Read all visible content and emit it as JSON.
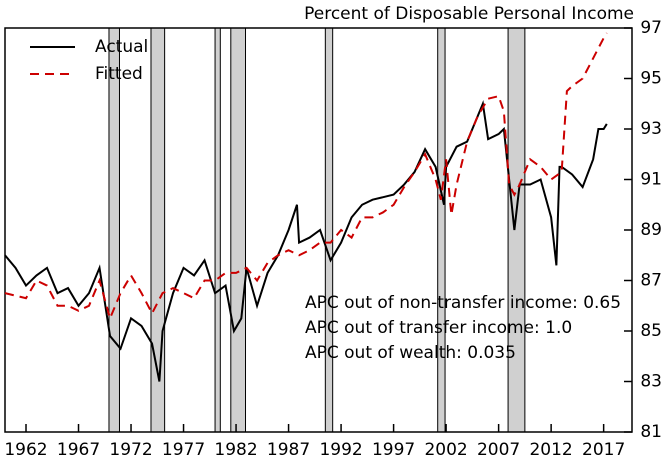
{
  "chart_data": {
    "type": "line",
    "subtitle": "Percent of Disposable Personal Income",
    "annotations": [
      "APC out of non-transfer income: 0.65",
      "APC out of transfer income: 1.0",
      "APC out of wealth: 0.035"
    ],
    "xlim": [
      1960,
      2019.7
    ],
    "xticks": [
      1962,
      1967,
      1972,
      1977,
      1982,
      1987,
      1992,
      1997,
      2002,
      2007,
      2012,
      2017
    ],
    "ylim": [
      81,
      97
    ],
    "yticks": [
      81,
      83,
      85,
      87,
      89,
      91,
      93,
      95,
      97
    ],
    "shaded_ranges": [
      [
        1969.9,
        1970.9
      ],
      [
        1973.9,
        1975.2
      ],
      [
        1980.0,
        1980.5
      ],
      [
        1981.5,
        1982.9
      ],
      [
        1990.5,
        1991.2
      ],
      [
        2001.2,
        2001.9
      ],
      [
        2007.9,
        2009.5
      ]
    ],
    "shade_color": "#d0d0d0",
    "series": [
      {
        "name": "Actual",
        "color": "#000000",
        "dash": false,
        "x": [
          1960,
          1961,
          1962,
          1963,
          1964,
          1965,
          1966,
          1967,
          1968,
          1969,
          1970,
          1971,
          1972,
          1973,
          1974,
          1974.7,
          1975,
          1976,
          1977,
          1978,
          1979,
          1980,
          1981,
          1981.8,
          1982.5,
          1983,
          1984,
          1985,
          1986,
          1987,
          1987.8,
          1988,
          1989,
          1990,
          1991,
          1992,
          1993,
          1994,
          1995,
          1996,
          1997,
          1998,
          1999,
          2000,
          2001,
          2001.8,
          2002,
          2003,
          2004,
          2005,
          2005.5,
          2006,
          2007,
          2007.5,
          2008,
          2008.5,
          2009,
          2010,
          2011,
          2012,
          2012.5,
          2012.8,
          2013,
          2014,
          2015,
          2016,
          2016.5,
          2017,
          2017.3
        ],
        "values": [
          88.0,
          87.5,
          86.8,
          87.2,
          87.5,
          86.5,
          86.7,
          86.0,
          86.5,
          87.5,
          84.8,
          84.3,
          85.5,
          85.2,
          84.5,
          83.0,
          85.0,
          86.5,
          87.5,
          87.2,
          87.8,
          86.5,
          86.8,
          85.0,
          85.5,
          87.5,
          86.0,
          87.3,
          88.0,
          89.0,
          90.0,
          88.5,
          88.7,
          89.0,
          87.8,
          88.5,
          89.5,
          90.0,
          90.2,
          90.3,
          90.4,
          90.8,
          91.3,
          92.2,
          91.5,
          90.0,
          91.5,
          92.3,
          92.5,
          93.5,
          94.0,
          92.6,
          92.8,
          93.0,
          91.0,
          89.0,
          90.8,
          90.8,
          91.0,
          89.5,
          87.6,
          91.5,
          91.5,
          91.2,
          90.7,
          91.8,
          93.0,
          93.0,
          93.2
        ]
      },
      {
        "name": "Fitted",
        "color": "#cc0000",
        "dash": true,
        "x": [
          1960,
          1962,
          1963,
          1964,
          1965,
          1966,
          1967,
          1968,
          1969,
          1970,
          1971,
          1972,
          1973,
          1974,
          1975,
          1976,
          1977,
          1978,
          1979,
          1980,
          1981,
          1982,
          1983,
          1984,
          1985,
          1986,
          1987,
          1988,
          1989,
          1990,
          1991,
          1992,
          1993,
          1994,
          1995,
          1996,
          1997,
          1998,
          1999,
          2000,
          2001,
          2001.5,
          2002,
          2002.5,
          2003,
          2004,
          2005,
          2006,
          2007,
          2007.5,
          2008,
          2008.5,
          2009,
          2010,
          2011,
          2012,
          2013,
          2013.5,
          2014,
          2015,
          2016,
          2017,
          2017.3
        ],
        "values": [
          86.5,
          86.3,
          87.0,
          86.8,
          86.0,
          86.0,
          85.8,
          86.0,
          87.0,
          85.5,
          86.5,
          87.2,
          86.5,
          85.7,
          86.5,
          86.7,
          86.5,
          86.3,
          87.0,
          87.0,
          87.3,
          87.3,
          87.5,
          87.0,
          87.7,
          88.0,
          88.2,
          88.0,
          88.2,
          88.5,
          88.5,
          89.0,
          88.7,
          89.5,
          89.5,
          89.7,
          90.0,
          90.7,
          91.3,
          92.0,
          91.0,
          90.2,
          91.8,
          89.6,
          90.8,
          92.5,
          93.5,
          94.2,
          94.3,
          93.7,
          90.8,
          90.4,
          90.8,
          91.8,
          91.5,
          91.0,
          91.3,
          94.5,
          94.7,
          95.0,
          95.8,
          96.6,
          96.8
        ]
      }
    ]
  }
}
